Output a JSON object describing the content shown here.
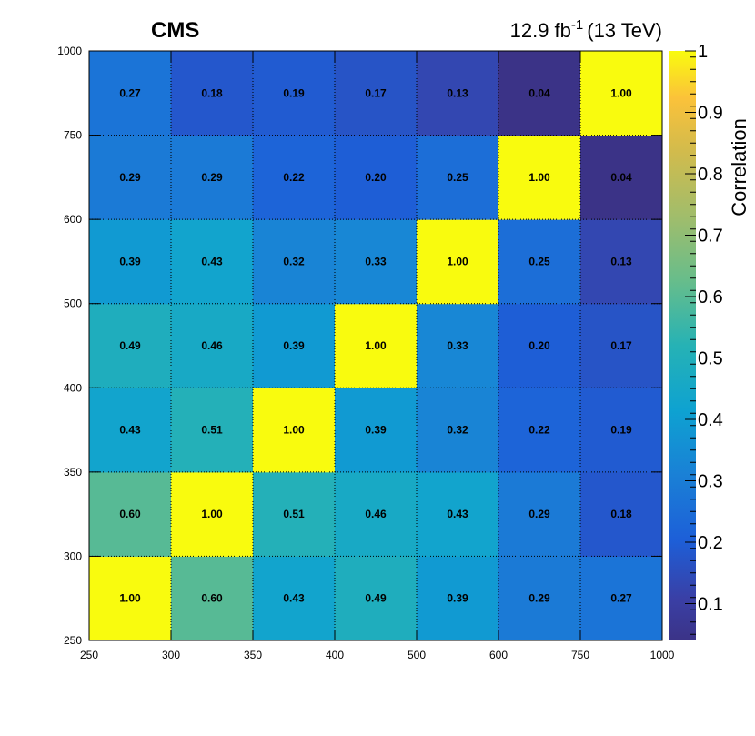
{
  "header": {
    "experiment": "CMS",
    "lumi_value": "12.9 fb",
    "lumi_exp": "-1",
    "energy": "(13 TeV)"
  },
  "colorbar": {
    "label": "Correlation",
    "range": [
      0.04,
      1.0
    ],
    "ticks": [
      0.1,
      0.2,
      0.3,
      0.4,
      0.5,
      0.6,
      0.7,
      0.8,
      0.9,
      1
    ],
    "tick_labels": [
      "0.1",
      "0.2",
      "0.3",
      "0.4",
      "0.5",
      "0.6",
      "0.7",
      "0.8",
      "0.9",
      "1"
    ],
    "palette": "parula-like (dark blue to yellow)"
  },
  "chart_data": {
    "type": "heatmap",
    "title": "",
    "xlabel": "",
    "ylabel": "",
    "x_bin_edges": [
      "250",
      "300",
      "350",
      "400",
      "500",
      "600",
      "750",
      "1000"
    ],
    "y_bin_edges": [
      "250",
      "300",
      "350",
      "400",
      "500",
      "600",
      "750",
      "1000"
    ],
    "grid": true,
    "matrix_rows_bottom_to_top": [
      [
        "1.00",
        "0.60",
        "0.43",
        "0.49",
        "0.39",
        "0.29",
        "0.27"
      ],
      [
        "0.60",
        "1.00",
        "0.51",
        "0.46",
        "0.43",
        "0.29",
        "0.18"
      ],
      [
        "0.43",
        "0.51",
        "1.00",
        "0.39",
        "0.32",
        "0.22",
        "0.19"
      ],
      [
        "0.49",
        "0.46",
        "0.39",
        "1.00",
        "0.33",
        "0.20",
        "0.17"
      ],
      [
        "0.39",
        "0.43",
        "0.32",
        "0.33",
        "1.00",
        "0.25",
        "0.13"
      ],
      [
        "0.29",
        "0.29",
        "0.22",
        "0.20",
        "0.25",
        "1.00",
        "0.04"
      ],
      [
        "0.27",
        "0.18",
        "0.19",
        "0.17",
        "0.13",
        "0.04",
        "1.00"
      ]
    ]
  }
}
